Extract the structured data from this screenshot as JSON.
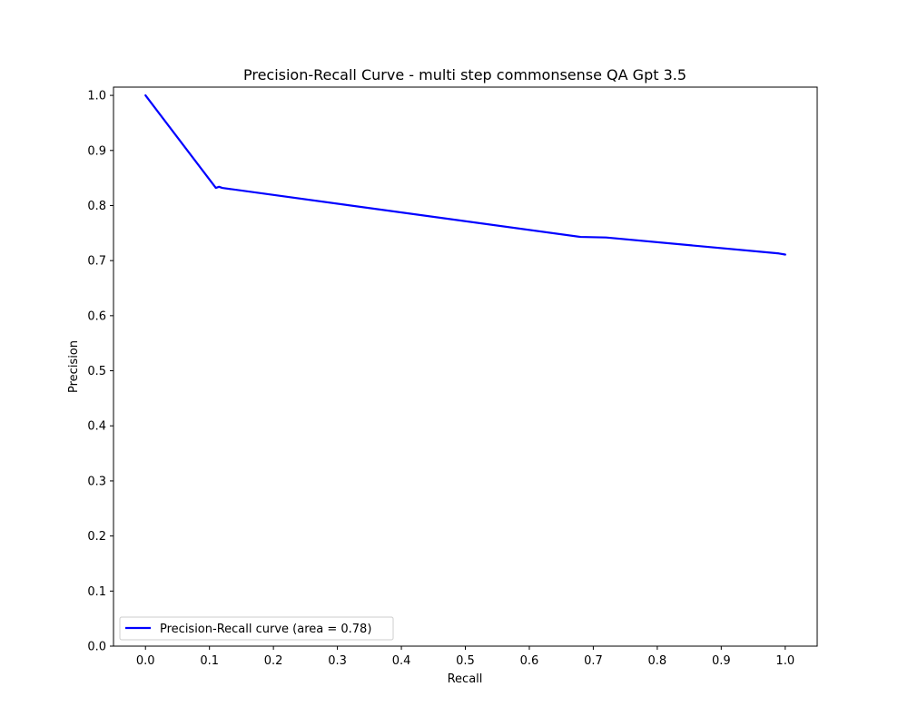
{
  "chart_data": {
    "type": "line",
    "title": "Precision-Recall Curve - multi step commonsense QA Gpt 3.5",
    "xlabel": "Recall",
    "ylabel": "Precision",
    "xlim": [
      -0.05,
      1.05
    ],
    "ylim": [
      0.0,
      1.015
    ],
    "xticks": [
      "0.0",
      "0.1",
      "0.2",
      "0.3",
      "0.4",
      "0.5",
      "0.6",
      "0.7",
      "0.8",
      "0.9",
      "1.0"
    ],
    "yticks": [
      "0.0",
      "0.1",
      "0.2",
      "0.3",
      "0.4",
      "0.5",
      "0.6",
      "0.7",
      "0.8",
      "0.9",
      "1.0"
    ],
    "grid": false,
    "legend_position": "lower-left",
    "series": [
      {
        "name": "Precision-Recall curve (area = 0.78)",
        "color": "#0000ff",
        "x": [
          0.0,
          0.11,
          0.115,
          0.12,
          0.68,
          0.72,
          0.99,
          1.0
        ],
        "y": [
          1.0,
          0.832,
          0.834,
          0.832,
          0.743,
          0.742,
          0.713,
          0.711
        ]
      }
    ]
  }
}
